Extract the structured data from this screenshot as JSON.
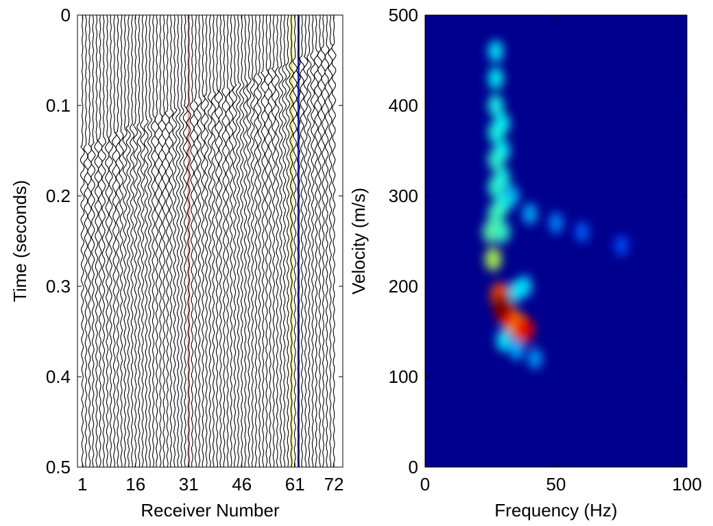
{
  "chart_data": [
    {
      "type": "wiggle",
      "xlabel": "Receiver Number",
      "ylabel": "Time (seconds)",
      "xlim": [
        -0.4,
        74.5
      ],
      "ylim": [
        0,
        0.5
      ],
      "y_inverted": true,
      "xticks": [
        1,
        16,
        31,
        46,
        61,
        72
      ],
      "yticks": [
        0,
        0.1,
        0.2,
        0.3,
        0.4,
        0.5
      ],
      "trace_count": 72,
      "color": "#000000",
      "highlights": [
        {
          "x": 31,
          "color": "#f4a0a0"
        },
        {
          "x": 60,
          "color": "#e8e060"
        },
        {
          "x": 62,
          "color": "#2a2ab8"
        }
      ]
    },
    {
      "type": "heatmap",
      "xlabel": "Frequency (Hz)",
      "ylabel": "Velocity (m/s)",
      "xlim": [
        0,
        100
      ],
      "ylim": [
        0,
        500
      ],
      "xticks": [
        0,
        50,
        100
      ],
      "yticks": [
        0,
        100,
        200,
        300,
        400,
        500
      ],
      "background": "#00008f",
      "colormap": "jet",
      "x": [
        75,
        60,
        50,
        42,
        40,
        35,
        33,
        38,
        35,
        30,
        27,
        27,
        29.5,
        29.5,
        27,
        27,
        29.5,
        29.5,
        27,
        27,
        29.5,
        27,
        25,
        26,
        34,
        36,
        28.5,
        31,
        38,
        29.5
      ],
      "y": [
        245,
        260,
        270,
        120,
        280,
        130,
        300,
        200,
        195,
        140,
        460,
        430,
        380,
        350,
        400,
        370,
        320,
        290,
        340,
        310,
        260,
        280,
        260,
        230,
        160,
        155,
        190,
        170,
        152,
        178
      ],
      "values": [
        0.2,
        0.22,
        0.26,
        0.28,
        0.3,
        0.3,
        0.32,
        0.34,
        0.36,
        0.36,
        0.36,
        0.38,
        0.38,
        0.38,
        0.4,
        0.4,
        0.4,
        0.4,
        0.42,
        0.42,
        0.42,
        0.44,
        0.46,
        0.55,
        0.7,
        0.75,
        0.8,
        0.85,
        0.9,
        1.0
      ]
    }
  ]
}
